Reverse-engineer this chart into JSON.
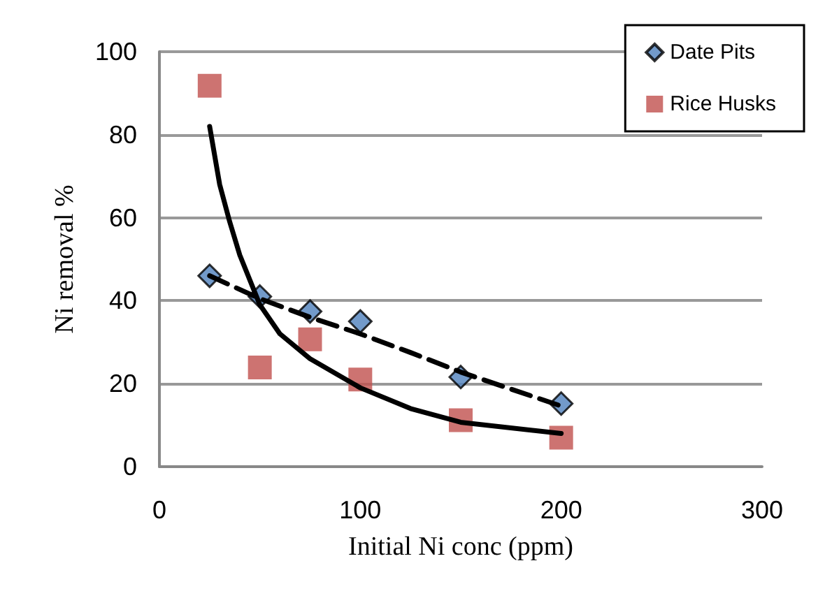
{
  "chart_data": {
    "type": "scatter",
    "xlabel": "Initial Ni conc (ppm)",
    "ylabel": "Ni removal %",
    "xlim": [
      0,
      300
    ],
    "xticks": [
      0,
      100,
      200,
      300
    ],
    "ylim": [
      0,
      100
    ],
    "yticks": [
      0,
      20,
      40,
      60,
      80,
      100
    ],
    "grid": "y",
    "legend": "top right",
    "series": [
      {
        "name": "Date Pits",
        "marker": "diamond",
        "color": "#4f81bd",
        "x": [
          25,
          50,
          75,
          100,
          150,
          200
        ],
        "values": [
          46,
          41,
          37.4,
          35,
          21.6,
          15.2
        ]
      },
      {
        "name": "Rice Husks",
        "marker": "square",
        "color": "#c0504d",
        "x": [
          25,
          50,
          75,
          100,
          150,
          200
        ],
        "values": [
          91.8,
          23.9,
          30.7,
          21,
          11.2,
          7
        ]
      },
      {
        "type": "line",
        "line_style": "dashed",
        "color": "#000000",
        "x": [
          25,
          50,
          75,
          100,
          125,
          150,
          200
        ],
        "values": [
          46,
          40.5,
          36,
          32,
          27.5,
          22.8,
          14.6
        ]
      },
      {
        "type": "line",
        "line_style": "solid",
        "color": "#000000",
        "x": [
          25,
          30,
          35,
          40,
          50,
          60,
          75,
          100,
          125,
          150,
          200
        ],
        "values": [
          82,
          68,
          59,
          51,
          39,
          32,
          26,
          19,
          14,
          10.7,
          8
        ]
      }
    ]
  }
}
